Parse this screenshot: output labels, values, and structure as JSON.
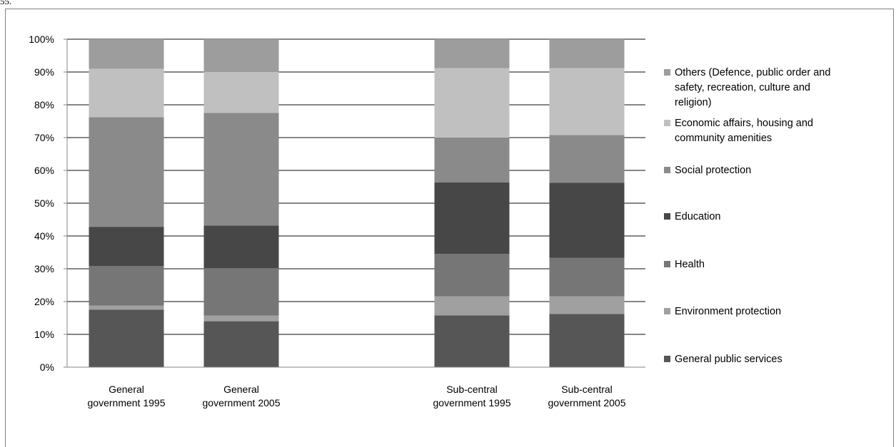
{
  "top_fragment": "55.",
  "chart_data": {
    "type": "bar",
    "stacked": true,
    "title": "",
    "xlabel": "",
    "ylabel": "",
    "ylim": [
      0,
      100
    ],
    "ytick_labels": [
      "0%",
      "10%",
      "20%",
      "30%",
      "40%",
      "50%",
      "60%",
      "70%",
      "80%",
      "90%",
      "100%"
    ],
    "grid": "horizontal",
    "legend_position": "right",
    "categories": [
      [
        "General",
        "government 1995"
      ],
      [
        "General",
        "government 2005"
      ],
      [
        "Sub-central",
        "government 1995"
      ],
      [
        "Sub-central",
        "government 2005"
      ]
    ],
    "series": [
      {
        "name": "General public services",
        "color": "#565656",
        "values": [
          17.5,
          14.0,
          15.8,
          16.2
        ]
      },
      {
        "name": "Environment protection",
        "color": "#a0a0a0",
        "values": [
          1.3,
          1.7,
          5.8,
          5.4
        ]
      },
      {
        "name": "Health",
        "color": "#767676",
        "values": [
          12.0,
          14.5,
          12.9,
          11.7
        ]
      },
      {
        "name": "Education",
        "color": "#474747",
        "values": [
          12.0,
          13.0,
          21.8,
          22.9
        ]
      },
      {
        "name": "Social protection",
        "color": "#8a8a8a",
        "values": [
          33.4,
          34.3,
          13.7,
          14.6
        ]
      },
      {
        "name": "Economic affairs, housing and community amenities",
        "color": "#c0c0c0",
        "values": [
          14.8,
          12.5,
          21.2,
          20.4
        ]
      },
      {
        "name": "Others (Defence, public order and safety, recreation, culture and religion)",
        "color": "#9d9d9d",
        "values": [
          9.0,
          10.0,
          8.8,
          8.8
        ]
      }
    ],
    "legend": [
      {
        "lines": [
          "Others (Defence, public order and",
          "safety, recreation, culture and",
          "religion)"
        ],
        "color": "#9d9d9d"
      },
      {
        "lines": [
          "Economic affairs, housing and",
          "community amenities"
        ],
        "color": "#c0c0c0"
      },
      {
        "lines": [
          "Social protection"
        ],
        "color": "#8a8a8a"
      },
      {
        "lines": [
          "Education"
        ],
        "color": "#474747"
      },
      {
        "lines": [
          "Health"
        ],
        "color": "#767676"
      },
      {
        "lines": [
          "Environment protection"
        ],
        "color": "#a0a0a0"
      },
      {
        "lines": [
          "General public services"
        ],
        "color": "#565656"
      }
    ]
  }
}
